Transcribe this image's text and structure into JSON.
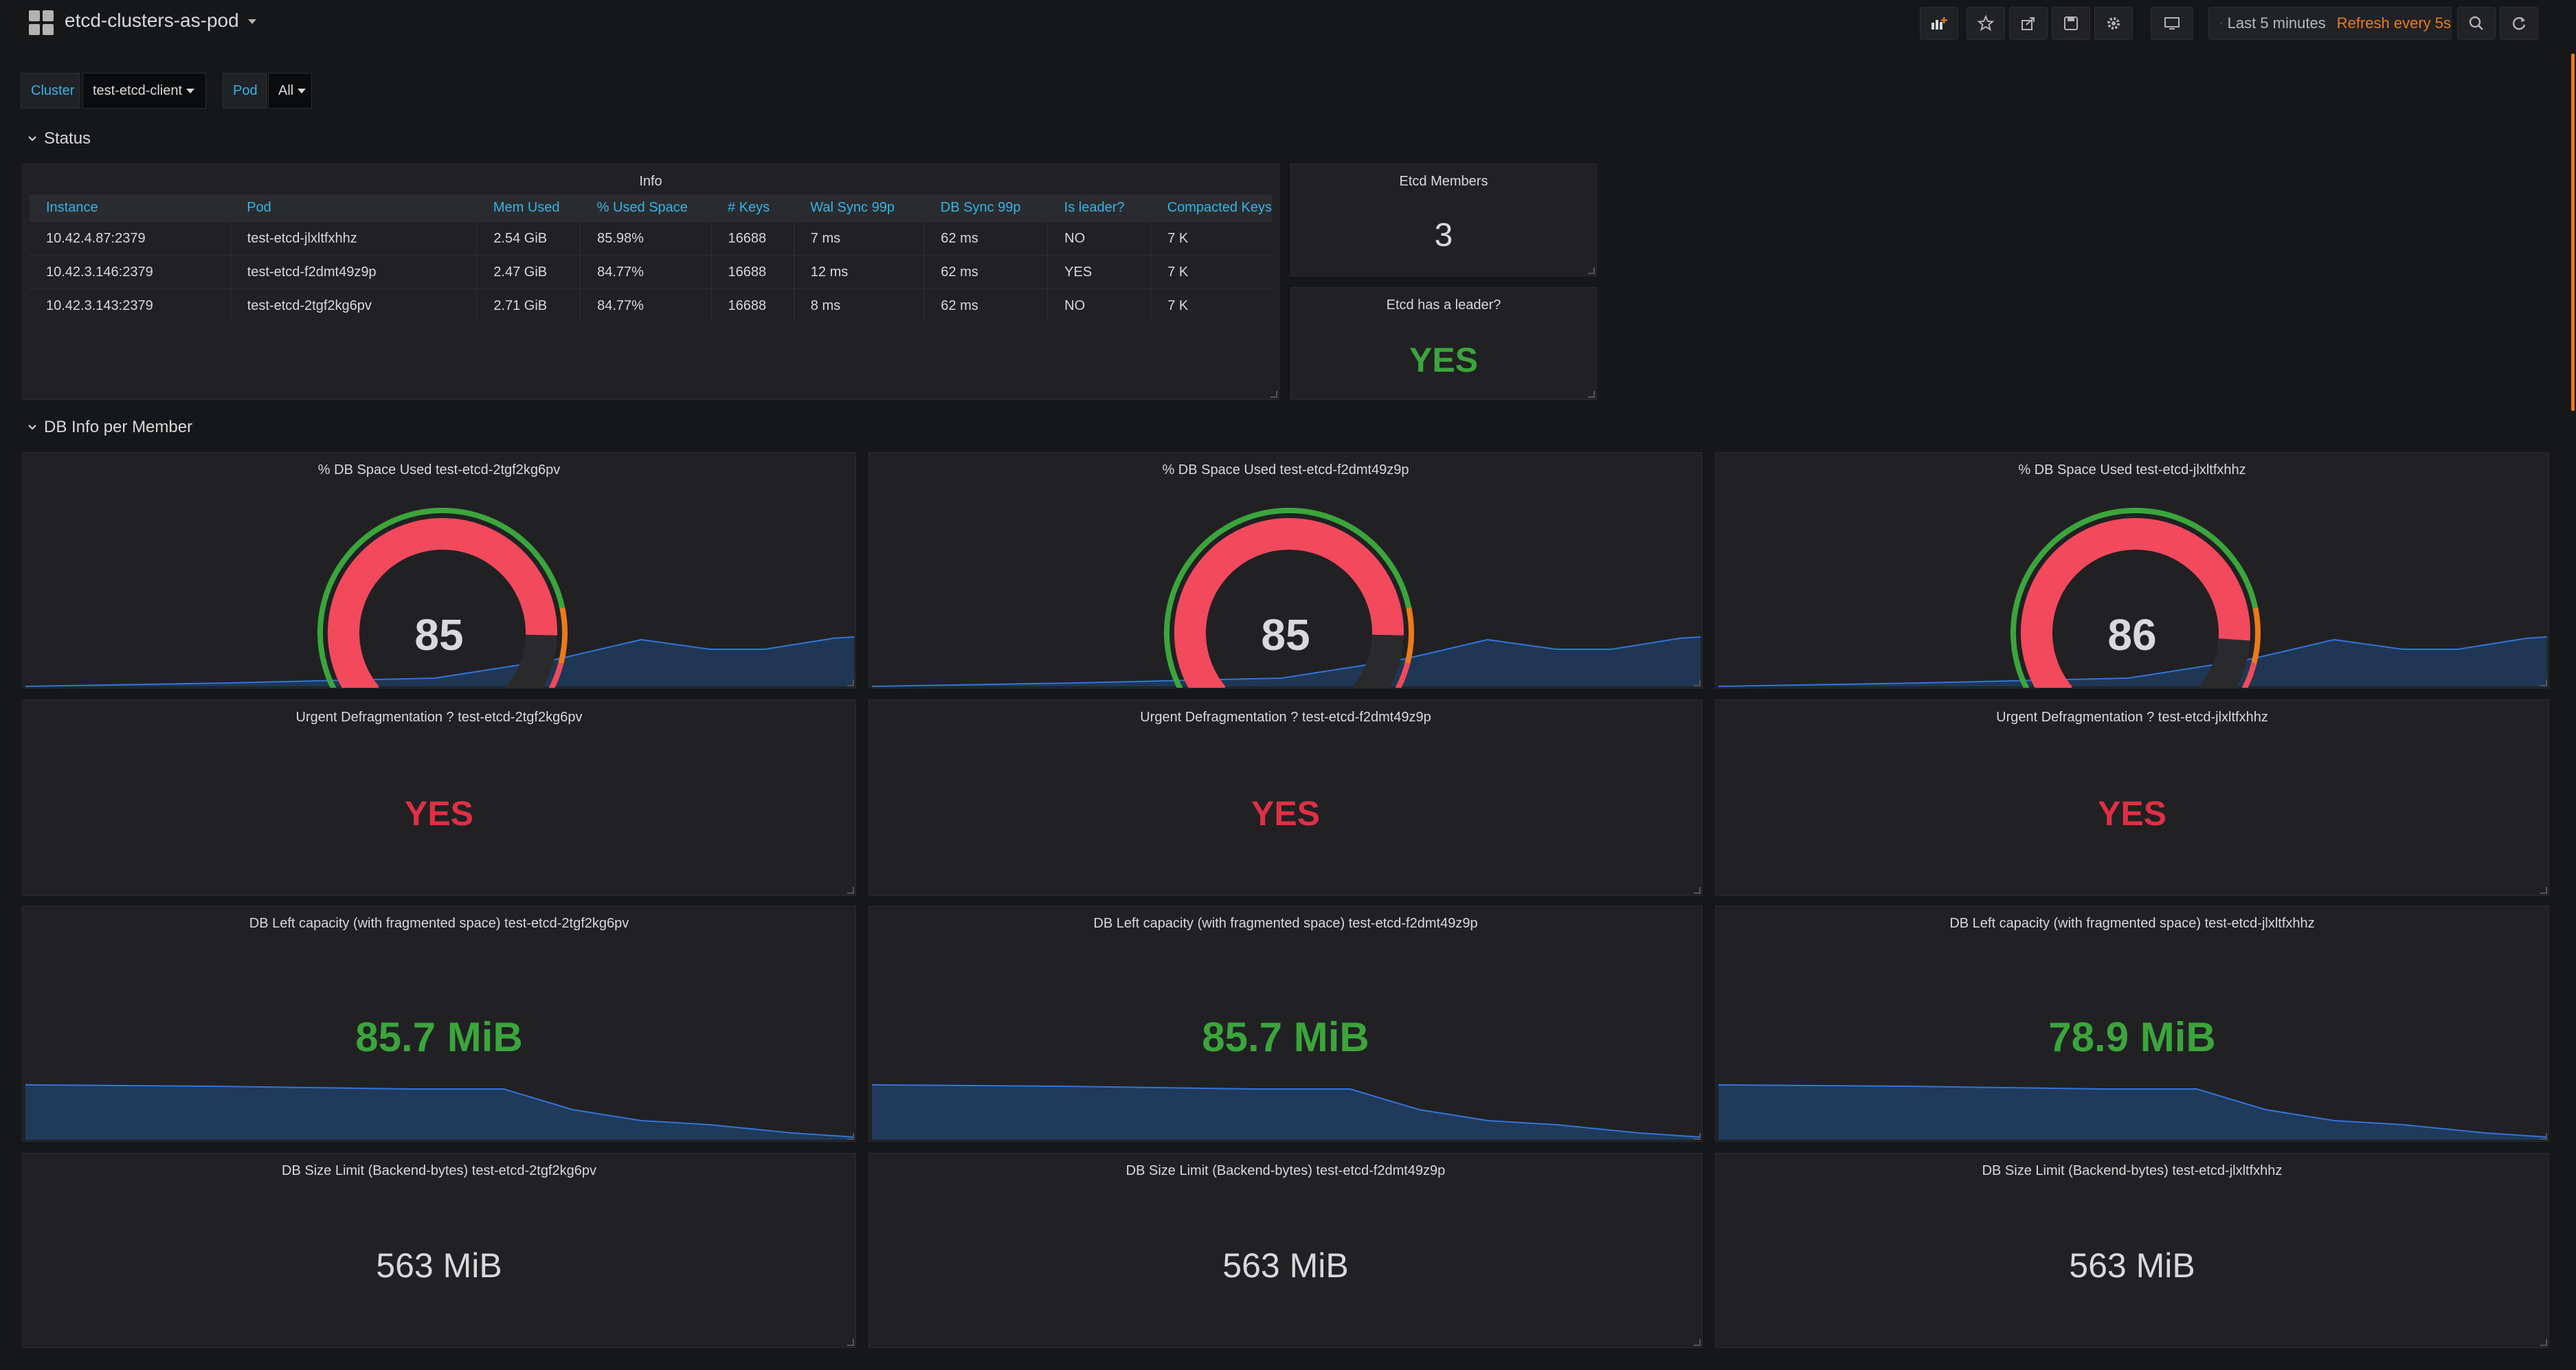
{
  "header": {
    "title": "etcd-clusters-as-pod"
  },
  "timepicker": {
    "range": "Last 5 minutes",
    "refresh": "Refresh every 5s"
  },
  "variables": [
    {
      "label": "Cluster",
      "value": "test-etcd-client"
    },
    {
      "label": "Pod",
      "value": "All"
    }
  ],
  "rows": {
    "status": "Status",
    "db_info": "DB Info per Member"
  },
  "info": {
    "title": "Info",
    "columns": [
      "Instance",
      "Pod",
      "Mem Used",
      "% Used Space",
      "# Keys",
      "Wal Sync 99p",
      "DB Sync 99p",
      "Is leader?",
      "Compacted Keys"
    ],
    "rows": [
      [
        "10.42.4.87:2379",
        "test-etcd-jlxltfxhhz",
        "2.54 GiB",
        "85.98%",
        "16688",
        "7 ms",
        "62 ms",
        "NO",
        "7 K"
      ],
      [
        "10.42.3.146:2379",
        "test-etcd-f2dmt49z9p",
        "2.47 GiB",
        "84.77%",
        "16688",
        "12 ms",
        "62 ms",
        "YES",
        "7 K"
      ],
      [
        "10.42.3.143:2379",
        "test-etcd-2tgf2kg6pv",
        "2.71 GiB",
        "84.77%",
        "16688",
        "8 ms",
        "62 ms",
        "NO",
        "7 K"
      ]
    ]
  },
  "members": {
    "title": "Etcd Members",
    "value": "3"
  },
  "leader": {
    "title": "Etcd has a leader?",
    "value": "YES"
  },
  "colors": {
    "green": "#3ba53b",
    "red": "#e24d42",
    "gauge_red": "#f2495c",
    "orange": "#eb7b18",
    "blue": "#33b5e5",
    "spark": "#1f3a5a"
  },
  "gauges": [
    {
      "title": "% DB Space Used test-etcd-2tgf2kg6pv",
      "value": "85",
      "level": 0.85
    },
    {
      "title": "% DB Space Used test-etcd-f2dmt49z9p",
      "value": "85",
      "level": 0.85
    },
    {
      "title": "% DB Space Used test-etcd-jlxltfxhhz",
      "value": "86",
      "level": 0.86
    }
  ],
  "defrag": [
    {
      "title": "Urgent Defragmentation ? test-etcd-2tgf2kg6pv",
      "value": "YES"
    },
    {
      "title": "Urgent Defragmentation ? test-etcd-f2dmt49z9p",
      "value": "YES"
    },
    {
      "title": "Urgent Defragmentation ? test-etcd-jlxltfxhhz",
      "value": "YES"
    }
  ],
  "capacity": [
    {
      "title": "DB Left capacity (with fragmented space) test-etcd-2tgf2kg6pv",
      "value": "85.7 MiB"
    },
    {
      "title": "DB Left capacity (with fragmented space) test-etcd-f2dmt49z9p",
      "value": "85.7 MiB"
    },
    {
      "title": "DB Left capacity (with fragmented space) test-etcd-jlxltfxhhz",
      "value": "78.9 MiB"
    }
  ],
  "size_limit": [
    {
      "title": "DB Size Limit (Backend-bytes) test-etcd-2tgf2kg6pv",
      "value": "563 MiB"
    },
    {
      "title": "DB Size Limit (Backend-bytes) test-etcd-f2dmt49z9p",
      "value": "563 MiB"
    },
    {
      "title": "DB Size Limit (Backend-bytes) test-etcd-jlxltfxhhz",
      "value": "563 MiB"
    }
  ]
}
